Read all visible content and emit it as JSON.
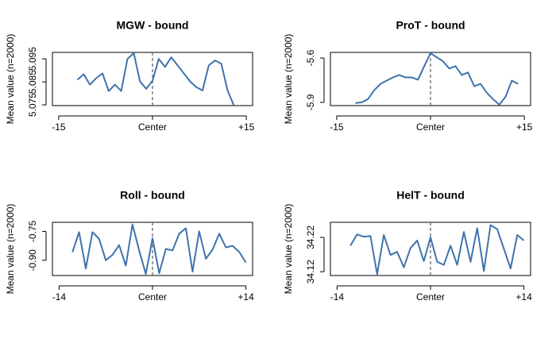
{
  "chart_data": [
    {
      "type": "line",
      "title": "MGW - bound",
      "y_label": "Mean value (n=2000)",
      "color": "#3f73ab",
      "vline_x": 0,
      "x": [
        -12,
        -11,
        -10,
        -9,
        -8,
        -7,
        -6,
        -5,
        -4,
        -3,
        -2,
        -1,
        0,
        1,
        2,
        3,
        4,
        5,
        6,
        7,
        8,
        9,
        10,
        11,
        12,
        13
      ],
      "values": [
        5.0859,
        5.0883,
        5.0838,
        5.0866,
        5.0887,
        5.081,
        5.0838,
        5.081,
        5.095,
        5.0975,
        5.0852,
        5.082,
        5.0855,
        5.095,
        5.0915,
        5.0957,
        5.0922,
        5.0887,
        5.0852,
        5.0827,
        5.0813,
        5.0922,
        5.0943,
        5.0929,
        5.0813,
        5.0748
      ],
      "xlim": [
        -16,
        16
      ],
      "xticks": [
        -15,
        {
          "value": 0,
          "label": "Center"
        },
        {
          "value": 15,
          "label": "+15"
        }
      ],
      "ylim": [
        5.0747,
        5.0978
      ],
      "yticks": [
        5.095,
        5.085,
        5.075
      ]
    },
    {
      "type": "line",
      "title": "ProT - bound",
      "y_label": "Mean value (n=2000)",
      "color": "#3f73ab",
      "vline_x": 0,
      "x": [
        -12,
        -11,
        -10,
        -9,
        -8,
        -7,
        -6,
        -5,
        -4,
        -3,
        -2,
        -1,
        0,
        1,
        2,
        3,
        4,
        5,
        6,
        7,
        8,
        9,
        10,
        11,
        12,
        13,
        14
      ],
      "values": [
        -5.905,
        -5.9,
        -5.878,
        -5.818,
        -5.775,
        -5.753,
        -5.731,
        -5.715,
        -5.731,
        -5.731,
        -5.747,
        -5.655,
        -5.567,
        -5.595,
        -5.622,
        -5.671,
        -5.655,
        -5.715,
        -5.698,
        -5.791,
        -5.775,
        -5.835,
        -5.878,
        -5.916,
        -5.862,
        -5.753,
        -5.775
      ],
      "xlim": [
        -16,
        16
      ],
      "xticks": [
        -15,
        {
          "value": 0,
          "label": "Center"
        },
        {
          "value": 15,
          "label": "+15"
        }
      ],
      "ylim": [
        -5.922,
        -5.562
      ],
      "yticks": [
        -5.6,
        -5.9
      ]
    },
    {
      "type": "line",
      "title": "Roll - bound",
      "y_label": "Mean value (n=2000)",
      "color": "#3f73ab",
      "vline_x": 0,
      "x": [
        -12,
        -11,
        -10,
        -9,
        -8,
        -7,
        -6,
        -5,
        -4,
        -3,
        -2,
        -1,
        0,
        1,
        2,
        3,
        4,
        5,
        6,
        7,
        8,
        9,
        10,
        11,
        12,
        13,
        14
      ],
      "values": [
        -0.857,
        -0.754,
        -0.943,
        -0.754,
        -0.789,
        -0.9,
        -0.872,
        -0.821,
        -0.928,
        -0.714,
        -0.849,
        -0.971,
        -0.786,
        -0.967,
        -0.841,
        -0.849,
        -0.762,
        -0.734,
        -0.959,
        -0.75,
        -0.892,
        -0.845,
        -0.762,
        -0.833,
        -0.825,
        -0.857,
        -0.912
      ],
      "xlim": [
        -15,
        15
      ],
      "xticks": [
        -14,
        {
          "value": 0,
          "label": "Center"
        },
        {
          "value": 14,
          "label": "+14"
        }
      ],
      "ylim": [
        -0.979,
        -0.703
      ],
      "yticks": [
        -0.75,
        {
          "value": -0.9,
          "label": "-0.90"
        }
      ]
    },
    {
      "type": "line",
      "title": "HelT - bound",
      "y_label": "Mean value (n=2000)",
      "color": "#3f73ab",
      "vline_x": 0,
      "x": [
        -12,
        -11,
        -10,
        -9,
        -8,
        -7,
        -6,
        -5,
        -4,
        -3,
        -2,
        -1,
        0,
        1,
        2,
        3,
        4,
        5,
        6,
        7,
        8,
        9,
        10,
        11,
        12,
        13,
        14
      ],
      "values": [
        34.196,
        34.229,
        34.222,
        34.224,
        34.113,
        34.227,
        34.169,
        34.178,
        34.133,
        34.189,
        34.211,
        34.151,
        34.22,
        34.149,
        34.14,
        34.196,
        34.14,
        34.236,
        34.149,
        34.247,
        34.122,
        34.256,
        34.244,
        34.187,
        34.129,
        34.227,
        34.211
      ],
      "xlim": [
        -15,
        15
      ],
      "xticks": [
        -14,
        {
          "value": 0,
          "label": "Center"
        },
        {
          "value": 14,
          "label": "+14"
        }
      ],
      "ylim": [
        34.109,
        34.264
      ],
      "yticks": [
        34.22,
        34.12
      ]
    }
  ]
}
